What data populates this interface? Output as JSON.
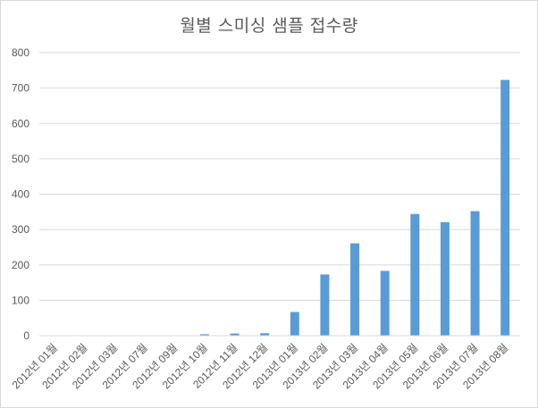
{
  "chart_data": {
    "type": "bar",
    "title": "월별 스미싱 샘플 접수량",
    "xlabel": "",
    "ylabel": "",
    "ylim": [
      0,
      800
    ],
    "yticks": [
      0,
      100,
      200,
      300,
      400,
      500,
      600,
      700,
      800
    ],
    "grid": true,
    "legend": "none",
    "categories": [
      "2012년 01월",
      "2012년 02월",
      "2012년 03월",
      "2012년 07월",
      "2012년 09월",
      "2012년 10월",
      "2012년 11월",
      "2012년 12월",
      "2013년 01월",
      "2013년 02월",
      "2013년 03월",
      "2013년 04월",
      "2013년 05월",
      "2013년 06월",
      "2013년 07월",
      "2013년 08월"
    ],
    "values": [
      1,
      1,
      1,
      1,
      1,
      4,
      6,
      7,
      67,
      173,
      261,
      183,
      344,
      321,
      352,
      723
    ],
    "colors": {
      "bar": "#5b9bd5",
      "grid": "#d9d9d9",
      "text": "#595959"
    }
  }
}
